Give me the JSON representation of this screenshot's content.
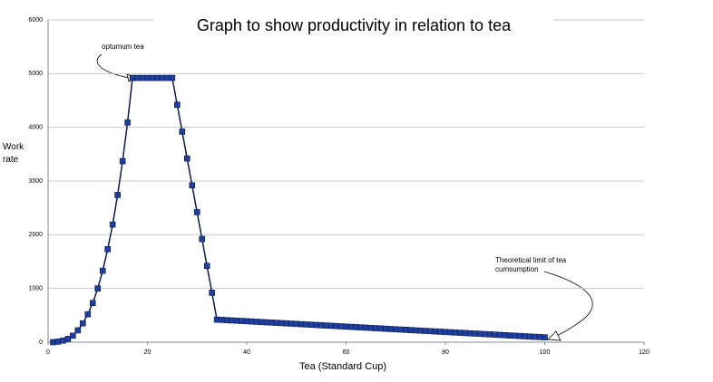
{
  "chart_data": {
    "type": "line",
    "title": "Graph to show productivity in relation to tea",
    "x_label": "Tea (Standard Cup)",
    "y_label": "Work rate",
    "x": [
      1,
      2,
      3,
      4,
      5,
      6,
      7,
      8,
      9,
      10,
      11,
      12,
      13,
      14,
      15,
      16,
      17,
      18,
      19,
      20,
      21,
      22,
      23,
      24,
      25,
      26,
      27,
      28,
      29,
      30,
      31,
      32,
      33,
      34,
      35,
      36,
      37,
      38,
      39,
      40,
      41,
      42,
      43,
      44,
      45,
      46,
      47,
      48,
      49,
      50,
      51,
      52,
      53,
      54,
      55,
      56,
      57,
      58,
      59,
      60,
      61,
      62,
      63,
      64,
      65,
      66,
      67,
      68,
      69,
      70,
      71,
      72,
      73,
      74,
      75,
      76,
      77,
      78,
      79,
      80,
      81,
      82,
      83,
      84,
      85,
      86,
      87,
      88,
      89,
      90,
      91,
      92,
      93,
      94,
      95,
      96,
      97,
      98,
      99,
      100
    ],
    "values": [
      0,
      10,
      30,
      60,
      120,
      220,
      350,
      520,
      730,
      1000,
      1330,
      1730,
      2190,
      2740,
      3370,
      4090,
      4920,
      4920,
      4920,
      4920,
      4920,
      4920,
      4920,
      4920,
      4920,
      4420,
      3920,
      3420,
      2920,
      2420,
      1920,
      1420,
      920,
      420,
      415,
      410,
      405,
      400,
      395,
      390,
      385,
      380,
      375,
      370,
      365,
      360,
      355,
      350,
      345,
      340,
      335,
      330,
      325,
      320,
      315,
      310,
      305,
      300,
      295,
      290,
      285,
      280,
      275,
      270,
      265,
      260,
      255,
      250,
      245,
      240,
      235,
      230,
      225,
      220,
      215,
      210,
      205,
      200,
      195,
      190,
      185,
      180,
      175,
      170,
      165,
      160,
      155,
      150,
      145,
      140,
      135,
      130,
      125,
      120,
      115,
      110,
      105,
      100,
      95,
      90
    ],
    "color": "#1f3f9f",
    "xlim": [
      0,
      120
    ],
    "xticks": [
      0,
      20,
      40,
      60,
      80,
      100,
      120
    ],
    "ylim": [
      0,
      6000
    ],
    "yticks": [
      0,
      1000,
      2000,
      3000,
      4000,
      5000,
      6000
    ],
    "grid": true,
    "annotations": [
      {
        "text": "optumum tea"
      },
      {
        "text": "Theoretical limit of tea cumsumption"
      }
    ]
  }
}
